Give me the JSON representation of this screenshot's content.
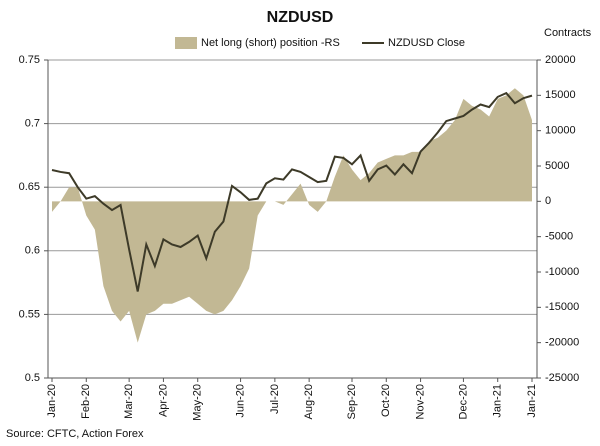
{
  "chart_data": {
    "type": "combo",
    "title": "NZDUSD",
    "y2_label": "Contracts",
    "source": "Source: CFTC, Action Forex",
    "categories": [
      "Jan-20",
      null,
      null,
      null,
      "Feb-20",
      null,
      null,
      null,
      null,
      "Mar-20",
      null,
      null,
      null,
      "Apr-20",
      null,
      null,
      null,
      "May-20",
      null,
      null,
      null,
      null,
      "Jun-20",
      null,
      null,
      null,
      "Jul-20",
      null,
      null,
      null,
      "Aug-20",
      null,
      null,
      null,
      null,
      "Sep-20",
      null,
      null,
      null,
      "Oct-20",
      null,
      null,
      null,
      "Nov-20",
      null,
      null,
      null,
      null,
      "Dec-20",
      null,
      null,
      null,
      "Jan-21",
      null,
      null,
      null,
      "Jan-21"
    ],
    "ylim": [
      0.5,
      0.75
    ],
    "yticks": [
      0.5,
      0.55,
      0.6,
      0.65,
      0.7,
      0.75
    ],
    "y2lim": [
      -25000,
      20000
    ],
    "y2ticks": [
      -25000,
      -20000,
      -15000,
      -10000,
      -5000,
      0,
      5000,
      10000,
      15000,
      20000
    ],
    "grid": true,
    "series": [
      {
        "name": "Net long (short) position -RS",
        "type": "area",
        "axis": "y2",
        "color": "#c2b894",
        "values": [
          -1500,
          0,
          2000,
          2000,
          -2000,
          -4000,
          -12000,
          -15500,
          -17000,
          -15500,
          -20000,
          -16000,
          -15500,
          -14500,
          -14500,
          -14000,
          -13500,
          -14500,
          -15500,
          -16000,
          -15500,
          -14000,
          -12000,
          -9500,
          -2000,
          0,
          0,
          -500,
          1000,
          2500,
          -500,
          -1500,
          0,
          3500,
          6500,
          4500,
          3000,
          4000,
          5500,
          6000,
          6500,
          6500,
          7000,
          7000,
          8500,
          9000,
          10000,
          11500,
          14500,
          13500,
          13000,
          12000,
          14500,
          15000,
          16000,
          15000,
          11500
        ]
      },
      {
        "name": "NZDUSD Close",
        "type": "line",
        "axis": "y",
        "color": "#3d3a28",
        "values": [
          0.6635,
          0.662,
          0.661,
          0.65,
          0.641,
          0.643,
          0.637,
          0.632,
          0.636,
          0.601,
          0.568,
          0.605,
          0.588,
          0.609,
          0.605,
          0.603,
          0.607,
          0.612,
          0.594,
          0.615,
          0.623,
          0.651,
          0.646,
          0.64,
          0.641,
          0.653,
          0.657,
          0.656,
          0.664,
          0.662,
          0.658,
          0.654,
          0.655,
          0.674,
          0.673,
          0.668,
          0.675,
          0.655,
          0.664,
          0.667,
          0.66,
          0.668,
          0.661,
          0.678,
          0.685,
          0.693,
          0.702,
          0.704,
          0.706,
          0.711,
          0.715,
          0.713,
          0.721,
          0.724,
          0.716,
          0.72,
          0.722
        ]
      }
    ]
  }
}
